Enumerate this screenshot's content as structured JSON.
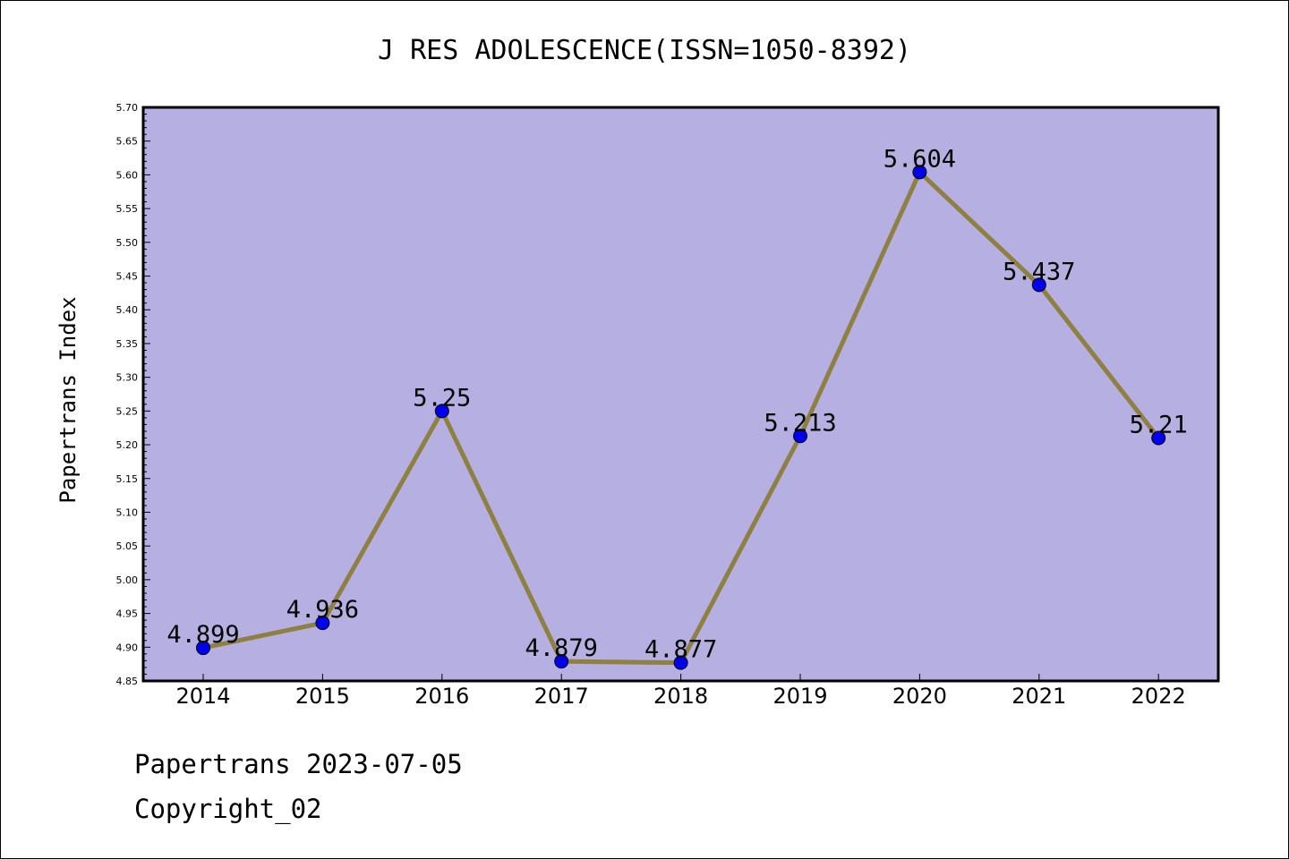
{
  "chart_data": {
    "type": "line",
    "title": "J RES ADOLESCENCE(ISSN=1050-8392)",
    "xlabel": "",
    "ylabel": "Papertrans Index",
    "categories": [
      "2014",
      "2015",
      "2016",
      "2017",
      "2018",
      "2019",
      "2020",
      "2021",
      "2022"
    ],
    "values": [
      4.899,
      4.936,
      5.25,
      4.879,
      4.877,
      5.213,
      5.604,
      5.437,
      5.21
    ],
    "data_labels": [
      "4.899",
      "4.936",
      "5.25",
      "4.879",
      "4.877",
      "5.213",
      "5.604",
      "5.437",
      "5.21"
    ],
    "ylim": [
      4.85,
      5.7
    ],
    "yticks": [
      "4.85",
      "4.90",
      "4.95",
      "5.00",
      "5.05",
      "5.10",
      "5.15",
      "5.20",
      "5.25",
      "5.30",
      "5.35",
      "5.40",
      "5.45",
      "5.50",
      "5.55",
      "5.60",
      "5.65",
      "5.70"
    ],
    "grid": false,
    "legend": "none",
    "colors": {
      "plot_background": "#b5afe2",
      "line": "#8e8040",
      "marker": "#0000ee"
    }
  },
  "footer": {
    "line1": "Papertrans 2023-07-05",
    "line2": "Copyright_02"
  }
}
